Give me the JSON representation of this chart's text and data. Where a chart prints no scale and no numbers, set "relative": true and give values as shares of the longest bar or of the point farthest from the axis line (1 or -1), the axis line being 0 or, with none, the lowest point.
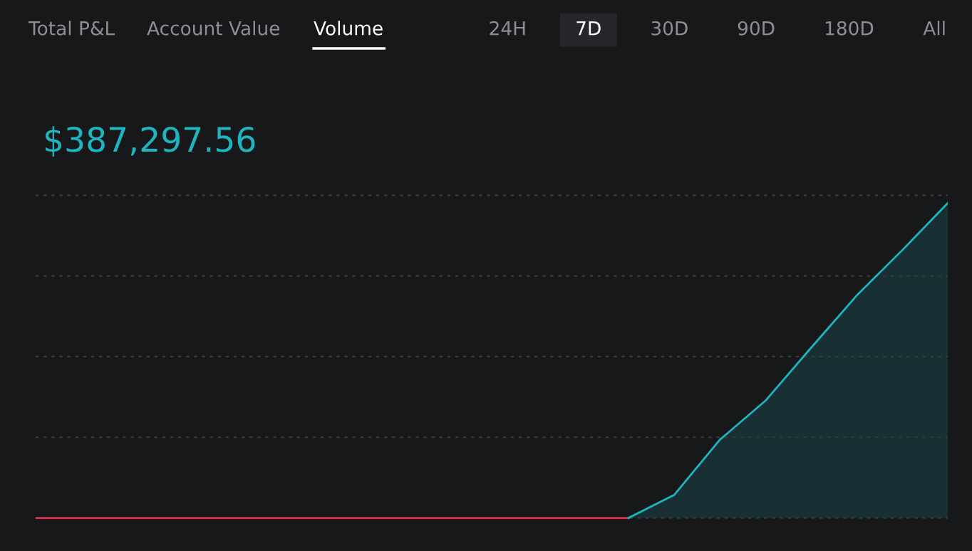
{
  "chart_data": {
    "type": "line",
    "title": "$387,297.56",
    "annotations": [
      "Total P&L",
      "Account Value",
      "Volume",
      "24H",
      "7D",
      "30D",
      "90D",
      "180D",
      "All"
    ],
    "categories": [
      null,
      null,
      null,
      null,
      null,
      null,
      null,
      null,
      null,
      null,
      null,
      null,
      null,
      null,
      null,
      null,
      null,
      null,
      null,
      null,
      null
    ],
    "relative": true,
    "series": [
      {
        "color": "#d9304f",
        "values": [
          0,
          0,
          0,
          0,
          0,
          0,
          0,
          0,
          0,
          0,
          0,
          0,
          0,
          0,
          null,
          null,
          null,
          null,
          null,
          null,
          null
        ]
      },
      {
        "type": "area",
        "color": "#1fb5c0",
        "values": [
          null,
          null,
          null,
          null,
          null,
          null,
          null,
          null,
          null,
          null,
          null,
          null,
          null,
          0,
          0.073,
          0.248,
          0.372,
          0.54,
          0.706,
          0.85,
          1
        ]
      }
    ],
    "grid": "y",
    "line_style": "solid",
    "marker": "none",
    "tick_labels": false
  }
}
